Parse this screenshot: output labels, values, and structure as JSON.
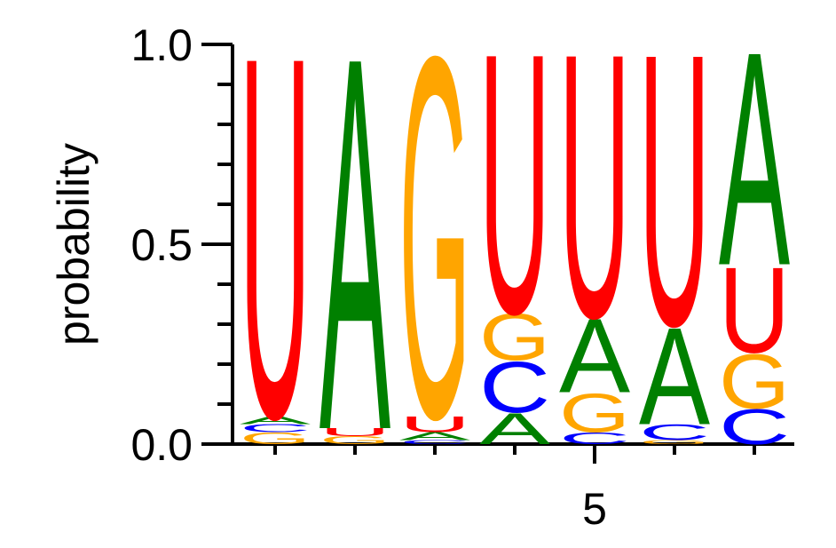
{
  "chart_data": {
    "type": "logo",
    "y_label": "probability",
    "colors": {
      "A": "#008000",
      "C": "#0000ff",
      "G": "#ffa500",
      "U": "#ff0000"
    },
    "positions": [
      1,
      2,
      3,
      4,
      5,
      6,
      7
    ],
    "stacks": [
      [
        {
          "letter": "G",
          "value": 0.03
        },
        {
          "letter": "C",
          "value": 0.02
        },
        {
          "letter": "A",
          "value": 0.02
        },
        {
          "letter": "U",
          "value": 0.93
        }
      ],
      [
        {
          "letter": "G",
          "value": 0.02
        },
        {
          "letter": "U",
          "value": 0.02
        },
        {
          "letter": "A",
          "value": 0.96
        }
      ],
      [
        {
          "letter": "C",
          "value": 0.01
        },
        {
          "letter": "A",
          "value": 0.02
        },
        {
          "letter": "U",
          "value": 0.04
        },
        {
          "letter": "G",
          "value": 0.93
        }
      ],
      [
        {
          "letter": "A",
          "value": 0.08
        },
        {
          "letter": "C",
          "value": 0.13
        },
        {
          "letter": "G",
          "value": 0.12
        },
        {
          "letter": "U",
          "value": 0.67
        }
      ],
      [
        {
          "letter": "C",
          "value": 0.03
        },
        {
          "letter": "G",
          "value": 0.1
        },
        {
          "letter": "A",
          "value": 0.19
        },
        {
          "letter": "U",
          "value": 0.68
        }
      ],
      [
        {
          "letter": "G",
          "value": 0.01
        },
        {
          "letter": "C",
          "value": 0.04
        },
        {
          "letter": "A",
          "value": 0.25
        },
        {
          "letter": "U",
          "value": 0.7
        }
      ],
      [
        {
          "letter": "C",
          "value": 0.09
        },
        {
          "letter": "G",
          "value": 0.14
        },
        {
          "letter": "U",
          "value": 0.22
        },
        {
          "letter": "A",
          "value": 0.55
        }
      ]
    ],
    "xlim": [
      0.5,
      7.5
    ],
    "xticks": [
      5
    ],
    "xminorticks": [
      1,
      2,
      3,
      4,
      6,
      7
    ],
    "ylim": [
      0,
      1
    ],
    "yticks": [
      {
        "value": 0,
        "label": "0.0"
      },
      {
        "value": 0.5,
        "label": "0.5"
      },
      {
        "value": 1,
        "label": "1.0"
      }
    ],
    "yminorticks": [
      0.1,
      0.2,
      0.3,
      0.4,
      0.6,
      0.7,
      0.8,
      0.9
    ]
  }
}
